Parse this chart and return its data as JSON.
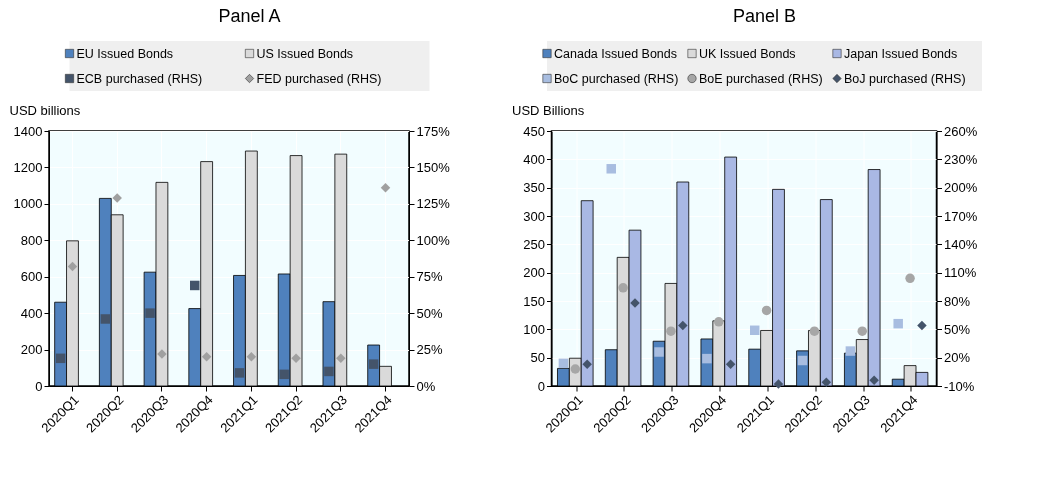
{
  "chart_data": [
    {
      "type": "bar",
      "title": "Panel A",
      "ylabel": "USD billions",
      "legend": "top",
      "grid": true,
      "categories": [
        "2020Q1",
        "2020Q2",
        "2020Q3",
        "2020Q4",
        "2021Q1",
        "2021Q2",
        "2021Q3",
        "2021Q4"
      ],
      "ylim": [
        0,
        1400
      ],
      "yticks": [
        0,
        200,
        400,
        600,
        800,
        1000,
        1200,
        1400
      ],
      "y2lim": [
        0,
        175
      ],
      "y2ticks": [
        {
          "value": 0,
          "label": "0%"
        },
        {
          "value": 25,
          "label": "25%"
        },
        {
          "value": 50,
          "label": "50%"
        },
        {
          "value": 75,
          "label": "75%"
        },
        {
          "value": 100,
          "label": "100%"
        },
        {
          "value": 125,
          "label": "125%"
        },
        {
          "value": 150,
          "label": "150%"
        },
        {
          "value": 175,
          "label": "175%"
        }
      ],
      "series": [
        {
          "name": "EU Issued Bonds",
          "color": "#4f81bd",
          "values": [
            460,
            1030,
            625,
            425,
            607,
            615,
            463,
            225
          ]
        },
        {
          "name": "US Issued Bonds",
          "color": "#dadada",
          "values": [
            797,
            940,
            1118,
            1232,
            1290,
            1265,
            1273,
            108
          ]
        },
        {
          "name": "ECB purchased (RHS)",
          "type": "scatter",
          "axis": "y2",
          "marker": "square",
          "color": "#44546a",
          "values": [
            19,
            46,
            50,
            69,
            9,
            8,
            10,
            15
          ]
        },
        {
          "name": "FED purchased (RHS)",
          "type": "scatter",
          "axis": "y2",
          "marker": "diamond",
          "color": "#a0a0a0",
          "values": [
            82,
            129,
            22,
            20,
            20,
            19,
            19,
            136
          ]
        }
      ]
    },
    {
      "type": "bar",
      "title": "Panel B",
      "ylabel": "USD Billions",
      "legend": "top",
      "grid": true,
      "categories": [
        "2020Q1",
        "2020Q2",
        "2020Q3",
        "2020Q4",
        "2021Q1",
        "2021Q2",
        "2021Q3",
        "2021Q4"
      ],
      "ylim": [
        0,
        450
      ],
      "yticks": [
        0,
        50,
        100,
        150,
        200,
        250,
        300,
        350,
        400,
        450
      ],
      "y2lim": [
        -10,
        260
      ],
      "y2ticks": [
        {
          "value": -10,
          "label": "-10%"
        },
        {
          "value": 20,
          "label": "20%"
        },
        {
          "value": 50,
          "label": "50%"
        },
        {
          "value": 80,
          "label": "80%"
        },
        {
          "value": 110,
          "label": "110%"
        },
        {
          "value": 140,
          "label": "140%"
        },
        {
          "value": 170,
          "label": "170%"
        },
        {
          "value": 200,
          "label": "200%"
        },
        {
          "value": 230,
          "label": "230%"
        },
        {
          "value": 260,
          "label": "260%"
        }
      ],
      "series": [
        {
          "name": "Canada Issued Bonds",
          "color": "#4f81bd",
          "values": [
            31,
            64,
            79,
            83,
            65,
            62,
            58,
            12
          ]
        },
        {
          "name": "UK Issued Bonds",
          "color": "#dadada",
          "values": [
            49,
            227,
            181,
            115,
            98,
            98,
            82,
            36
          ]
        },
        {
          "name": "Japan Issued Bonds",
          "color": "#a9b8e4",
          "values": [
            327,
            275,
            360,
            404,
            347,
            329,
            382,
            24
          ]
        },
        {
          "name": "BoC purchased (RHS)",
          "type": "scatter",
          "axis": "y2",
          "marker": "square",
          "color": "#a8bde0",
          "values": [
            14,
            220,
            26,
            19,
            49,
            17,
            27,
            56
          ]
        },
        {
          "name": "BoE purchased (RHS)",
          "type": "scatter",
          "axis": "y2",
          "marker": "circle",
          "color": "#a6a6a6",
          "values": [
            8,
            94,
            48,
            58,
            70,
            48,
            48,
            104
          ]
        },
        {
          "name": "BoJ purchased (RHS)",
          "type": "scatter",
          "axis": "y2",
          "marker": "diamond",
          "color": "#44546a",
          "values": [
            13,
            78,
            54,
            13,
            -8,
            -6,
            -4,
            54
          ]
        }
      ]
    }
  ]
}
